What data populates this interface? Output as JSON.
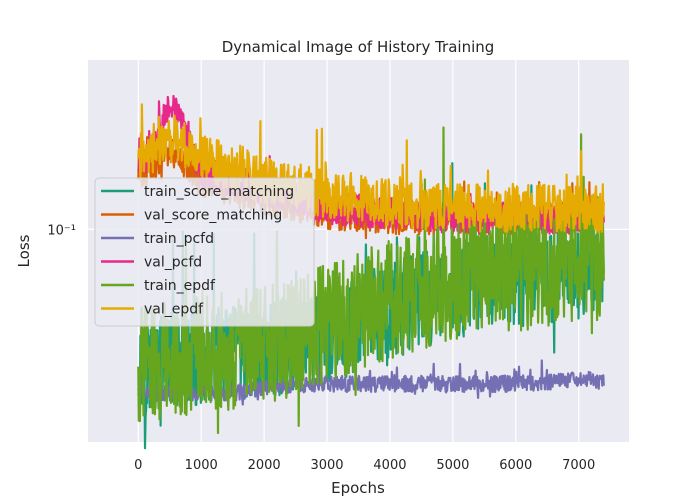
{
  "chart_data": {
    "type": "line",
    "title": "Dynamical Image of History Training",
    "xlabel": "Epochs",
    "ylabel": "Loss",
    "yscale": "log",
    "xlim": [
      -800,
      7800
    ],
    "ylim": [
      0.0165,
      0.42
    ],
    "x_ticks": [
      0,
      1000,
      2000,
      3000,
      4000,
      5000,
      6000,
      7000
    ],
    "y_ticks": [
      {
        "value": 0.1,
        "label": "10⁻¹"
      }
    ],
    "grid": true,
    "legend_position": "center-left",
    "series": [
      {
        "name": "train_score_matching",
        "color": "#1b9e77",
        "x": [
          0,
          250,
          500,
          1000,
          1500,
          2000,
          3000,
          4000,
          5000,
          6000,
          7000,
          7400
        ],
        "values": [
          0.03,
          0.032,
          0.033,
          0.034,
          0.035,
          0.036,
          0.04,
          0.05,
          0.06,
          0.065,
          0.07,
          0.07
        ]
      },
      {
        "name": "val_score_matching",
        "color": "#d95f02",
        "x": [
          0,
          250,
          500,
          1000,
          1500,
          2000,
          3000,
          4000,
          5000,
          6000,
          7000,
          7400
        ],
        "values": [
          0.16,
          0.17,
          0.2,
          0.15,
          0.14,
          0.13,
          0.115,
          0.11,
          0.11,
          0.11,
          0.11,
          0.11
        ]
      },
      {
        "name": "train_pcfd",
        "color": "#7570b3",
        "x": [
          0,
          250,
          500,
          1000,
          1500,
          2000,
          3000,
          4000,
          5000,
          6000,
          7000,
          7400
        ],
        "values": [
          0.026,
          0.025,
          0.025,
          0.025,
          0.025,
          0.026,
          0.027,
          0.027,
          0.027,
          0.027,
          0.028,
          0.028
        ]
      },
      {
        "name": "val_pcfd",
        "color": "#e7298a",
        "x": [
          0,
          250,
          500,
          1000,
          1500,
          2000,
          3000,
          4000,
          5000,
          6000,
          7000,
          7400
        ],
        "values": [
          0.17,
          0.2,
          0.3,
          0.16,
          0.15,
          0.14,
          0.12,
          0.115,
          0.11,
          0.11,
          0.11,
          0.11
        ]
      },
      {
        "name": "train_epdf",
        "color": "#66a61e",
        "x": [
          0,
          250,
          500,
          1000,
          1500,
          2000,
          3000,
          4000,
          5000,
          6000,
          7000,
          7400
        ],
        "values": [
          0.032,
          0.033,
          0.033,
          0.035,
          0.036,
          0.037,
          0.045,
          0.055,
          0.065,
          0.07,
          0.075,
          0.075
        ]
      },
      {
        "name": "val_epdf",
        "color": "#e6ab02",
        "x": [
          0,
          250,
          500,
          1000,
          1500,
          2000,
          3000,
          4000,
          5000,
          6000,
          7000,
          7400
        ],
        "values": [
          0.18,
          0.2,
          0.22,
          0.18,
          0.17,
          0.15,
          0.135,
          0.125,
          0.12,
          0.12,
          0.12,
          0.12
        ]
      }
    ]
  }
}
